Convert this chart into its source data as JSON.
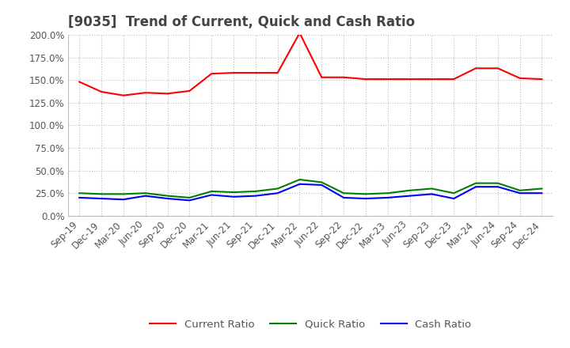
{
  "title": "[9035]  Trend of Current, Quick and Cash Ratio",
  "x_labels": [
    "Sep-19",
    "Dec-19",
    "Mar-20",
    "Jun-20",
    "Sep-20",
    "Dec-20",
    "Mar-21",
    "Jun-21",
    "Sep-21",
    "Dec-21",
    "Mar-22",
    "Jun-22",
    "Sep-22",
    "Dec-22",
    "Mar-23",
    "Jun-23",
    "Sep-23",
    "Dec-23",
    "Mar-24",
    "Jun-24",
    "Sep-24",
    "Dec-24"
  ],
  "current_ratio": [
    148.0,
    137.0,
    133.0,
    136.0,
    135.0,
    138.0,
    157.0,
    158.0,
    158.0,
    158.0,
    202.0,
    153.0,
    153.0,
    151.0,
    151.0,
    151.0,
    151.0,
    151.0,
    163.0,
    163.0,
    152.0,
    151.0
  ],
  "quick_ratio": [
    25.0,
    24.0,
    24.0,
    25.0,
    22.0,
    20.0,
    27.0,
    26.0,
    27.0,
    30.0,
    40.0,
    37.0,
    25.0,
    24.0,
    25.0,
    28.0,
    30.0,
    25.0,
    36.0,
    36.0,
    28.0,
    30.0
  ],
  "cash_ratio": [
    20.0,
    19.0,
    18.0,
    22.0,
    19.0,
    17.0,
    23.0,
    21.0,
    22.0,
    25.0,
    35.0,
    34.0,
    20.0,
    19.0,
    20.0,
    22.0,
    24.0,
    19.0,
    32.0,
    32.0,
    25.0,
    25.0
  ],
  "ylim": [
    0.0,
    200.0
  ],
  "yticks": [
    0.0,
    25.0,
    50.0,
    75.0,
    100.0,
    125.0,
    150.0,
    175.0,
    200.0
  ],
  "current_color": "#FF0000",
  "quick_color": "#008000",
  "cash_color": "#0000FF",
  "background_color": "#FFFFFF",
  "grid_color": "#BBBBBB",
  "title_fontsize": 12,
  "label_fontsize": 8.5,
  "legend_fontsize": 9.5
}
